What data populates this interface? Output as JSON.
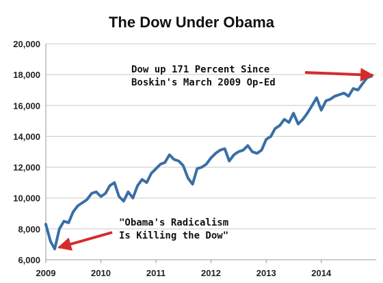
{
  "chart_data": {
    "type": "line",
    "title": "The Dow Under Obama",
    "xlabel": "",
    "ylabel": "",
    "ylim": [
      6000,
      20000
    ],
    "xlim": [
      "2009-01-01",
      "2014-12-31"
    ],
    "y_ticks": [
      "6,000",
      "8,000",
      "10,000",
      "12,000",
      "14,000",
      "16,000",
      "18,000",
      "20,000"
    ],
    "x_ticks": [
      "2009",
      "2010",
      "2011",
      "2012",
      "2013",
      "2014"
    ],
    "grid": "horizontal",
    "series_color": "#3a6ea5",
    "arrow_color": "#d62b2b",
    "series": [
      {
        "x": [
          "2009-01",
          "2009-02",
          "2009-03",
          "2009-04",
          "2009-05",
          "2009-06",
          "2009-07",
          "2009-08",
          "2009-09",
          "2009-10",
          "2009-11",
          "2009-12",
          "2010-01",
          "2010-02",
          "2010-03",
          "2010-04",
          "2010-05",
          "2010-06",
          "2010-07",
          "2010-08",
          "2010-09",
          "2010-10",
          "2010-11",
          "2010-12",
          "2011-01",
          "2011-02",
          "2011-03",
          "2011-04",
          "2011-05",
          "2011-06",
          "2011-07",
          "2011-08",
          "2011-09",
          "2011-10",
          "2011-11",
          "2011-12",
          "2012-01",
          "2012-02",
          "2012-03",
          "2012-04",
          "2012-05",
          "2012-06",
          "2012-07",
          "2012-08",
          "2012-09",
          "2012-10",
          "2012-11",
          "2012-12",
          "2013-01",
          "2013-02",
          "2013-03",
          "2013-04",
          "2013-05",
          "2013-06",
          "2013-07",
          "2013-08",
          "2013-09",
          "2013-10",
          "2013-11",
          "2013-12",
          "2014-01",
          "2014-02",
          "2014-03",
          "2014-04",
          "2014-05",
          "2014-06",
          "2014-07",
          "2014-08",
          "2014-09",
          "2014-10",
          "2014-11",
          "2014-12"
        ],
        "values": [
          8300,
          7200,
          6700,
          8000,
          8500,
          8400,
          9100,
          9500,
          9700,
          9900,
          10300,
          10400,
          10100,
          10300,
          10800,
          11000,
          10100,
          9800,
          10400,
          10000,
          10800,
          11200,
          11000,
          11600,
          11900,
          12200,
          12300,
          12800,
          12500,
          12400,
          12100,
          11300,
          10900,
          11900,
          12000,
          12200,
          12600,
          12900,
          13100,
          13200,
          12400,
          12800,
          13000,
          13100,
          13400,
          13000,
          12900,
          13100,
          13800,
          14000,
          14500,
          14700,
          15100,
          14900,
          15500,
          14800,
          15100,
          15500,
          16000,
          16500,
          15700,
          16300,
          16400,
          16600,
          16700,
          16800,
          16600,
          17100,
          17000,
          17400,
          17800,
          17900
        ]
      }
    ],
    "annotations": [
      {
        "lines": [
          "Dow up 171 Percent Since",
          "Boskin's March 2009 Op-Ed"
        ]
      },
      {
        "lines": [
          "\"Obama's Radicalism",
          "Is Killing the Dow\""
        ]
      }
    ]
  }
}
